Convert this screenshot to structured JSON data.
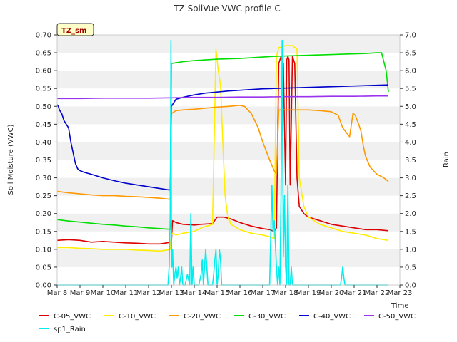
{
  "chart_data": {
    "type": "line",
    "title": "TZ SoilVue VWC profile C",
    "badge": "TZ_sm",
    "xlabel": "Time",
    "ylabel": "Soil Moisture (VWC)",
    "y2label": "Rain",
    "x_ticks": [
      "Mar 8",
      "Mar 9",
      "Mar 10",
      "Mar 11",
      "Mar 12",
      "Mar 13",
      "Mar 14",
      "Mar 15",
      "Mar 16",
      "Mar 17",
      "Mar 18",
      "Mar 19",
      "Mar 20",
      "Mar 21",
      "Mar 22",
      "Mar 23"
    ],
    "xlim": [
      0,
      15
    ],
    "ylim": [
      0.0,
      0.7
    ],
    "y2lim": [
      0.0,
      7.0
    ],
    "y_ticks": [
      "0.00",
      "0.05",
      "0.10",
      "0.15",
      "0.20",
      "0.25",
      "0.30",
      "0.35",
      "0.40",
      "0.45",
      "0.50",
      "0.55",
      "0.60",
      "0.65",
      "0.70"
    ],
    "y2_ticks": [
      "0.0",
      "0.5",
      "1.0",
      "1.5",
      "2.0",
      "2.5",
      "3.0",
      "3.5",
      "4.0",
      "4.5",
      "5.0",
      "5.5",
      "6.0",
      "6.5",
      "7.0"
    ],
    "grid": "horizontal-bands",
    "legend_placement": "bottom",
    "series": [
      {
        "name": "C-05_VWC",
        "color": "#dd0000",
        "axis": "left",
        "x": [
          0.0,
          0.5,
          1.0,
          1.5,
          2.0,
          2.5,
          3.0,
          3.5,
          4.0,
          4.5,
          5.0,
          5.05,
          5.2,
          5.5,
          6.0,
          6.3,
          6.8,
          7.0,
          7.3,
          7.6,
          8.0,
          8.5,
          9.0,
          9.3,
          9.5,
          9.6,
          9.7,
          9.8,
          9.9,
          10.0,
          10.05,
          10.1,
          10.15,
          10.2,
          10.3,
          10.4,
          10.5,
          10.6,
          10.8,
          11.0,
          11.5,
          12.0,
          12.5,
          13.0,
          13.5,
          14.0,
          14.5
        ],
        "y": [
          0.125,
          0.127,
          0.125,
          0.12,
          0.122,
          0.12,
          0.118,
          0.117,
          0.115,
          0.115,
          0.12,
          0.18,
          0.175,
          0.17,
          0.168,
          0.17,
          0.172,
          0.19,
          0.19,
          0.185,
          0.175,
          0.165,
          0.158,
          0.155,
          0.15,
          0.16,
          0.62,
          0.64,
          0.62,
          0.28,
          0.63,
          0.64,
          0.63,
          0.28,
          0.64,
          0.62,
          0.3,
          0.22,
          0.2,
          0.19,
          0.18,
          0.17,
          0.165,
          0.16,
          0.155,
          0.155,
          0.152
        ]
      },
      {
        "name": "C-10_VWC",
        "color": "#ffee00",
        "axis": "left",
        "x": [
          0.0,
          0.5,
          1.0,
          1.5,
          2.0,
          2.5,
          3.0,
          3.5,
          4.0,
          4.5,
          4.95,
          5.0,
          5.05,
          5.2,
          5.5,
          6.0,
          6.3,
          6.8,
          6.95,
          7.05,
          7.15,
          7.25,
          7.35,
          7.45,
          7.6,
          8.0,
          8.5,
          9.0,
          9.3,
          9.5,
          9.6,
          9.7,
          9.8,
          10.0,
          10.3,
          10.5,
          10.6,
          10.8,
          11.0,
          11.5,
          12.0,
          12.5,
          13.0,
          13.5,
          14.0,
          14.5
        ],
        "y": [
          0.105,
          0.105,
          0.103,
          0.102,
          0.1,
          0.1,
          0.1,
          0.098,
          0.097,
          0.095,
          0.1,
          0.14,
          0.145,
          0.14,
          0.145,
          0.15,
          0.16,
          0.17,
          0.66,
          0.6,
          0.56,
          0.4,
          0.25,
          0.2,
          0.17,
          0.155,
          0.145,
          0.14,
          0.135,
          0.13,
          0.64,
          0.665,
          0.665,
          0.67,
          0.67,
          0.66,
          0.3,
          0.22,
          0.19,
          0.17,
          0.16,
          0.15,
          0.145,
          0.14,
          0.13,
          0.125
        ]
      },
      {
        "name": "C-20_VWC",
        "color": "#ff9900",
        "axis": "left",
        "x": [
          0.0,
          0.5,
          1.0,
          1.5,
          2.0,
          2.5,
          3.0,
          3.5,
          4.0,
          4.5,
          4.95,
          5.0,
          5.2,
          5.5,
          6.0,
          6.5,
          7.0,
          7.5,
          8.0,
          8.2,
          8.5,
          8.8,
          9.0,
          9.3,
          9.5,
          9.6,
          9.7,
          10.0,
          10.5,
          11.0,
          11.5,
          12.0,
          12.3,
          12.5,
          12.8,
          12.95,
          13.05,
          13.2,
          13.3,
          13.4,
          13.5,
          13.7,
          14.0,
          14.3,
          14.5
        ],
        "y": [
          0.262,
          0.258,
          0.255,
          0.252,
          0.25,
          0.25,
          0.248,
          0.247,
          0.245,
          0.243,
          0.24,
          0.48,
          0.488,
          0.49,
          0.492,
          0.495,
          0.498,
          0.5,
          0.503,
          0.5,
          0.48,
          0.44,
          0.4,
          0.35,
          0.32,
          0.31,
          0.49,
          0.49,
          0.49,
          0.49,
          0.488,
          0.485,
          0.475,
          0.44,
          0.415,
          0.48,
          0.475,
          0.45,
          0.43,
          0.39,
          0.36,
          0.33,
          0.31,
          0.3,
          0.29
        ]
      },
      {
        "name": "C-30_VWC",
        "color": "#00dd00",
        "axis": "left",
        "x": [
          0.0,
          0.5,
          1.0,
          1.5,
          2.0,
          2.5,
          3.0,
          3.5,
          4.0,
          4.5,
          4.95,
          5.0,
          5.2,
          5.5,
          6.0,
          6.5,
          7.0,
          7.5,
          8.0,
          8.5,
          9.0,
          9.5,
          10.0,
          10.5,
          11.0,
          11.5,
          12.0,
          12.5,
          13.0,
          13.5,
          14.0,
          14.2,
          14.4,
          14.5
        ],
        "y": [
          0.183,
          0.179,
          0.176,
          0.173,
          0.17,
          0.168,
          0.165,
          0.163,
          0.16,
          0.158,
          0.156,
          0.62,
          0.622,
          0.625,
          0.628,
          0.63,
          0.632,
          0.633,
          0.634,
          0.636,
          0.638,
          0.64,
          0.641,
          0.642,
          0.643,
          0.644,
          0.645,
          0.646,
          0.647,
          0.648,
          0.65,
          0.65,
          0.6,
          0.54
        ]
      },
      {
        "name": "C-40_VWC",
        "color": "#0000cc",
        "axis": "left",
        "x": [
          0.0,
          0.05,
          0.1,
          0.2,
          0.3,
          0.4,
          0.5,
          0.6,
          0.7,
          0.8,
          0.9,
          1.0,
          1.2,
          1.5,
          2.0,
          2.5,
          3.0,
          3.5,
          4.0,
          4.5,
          4.9,
          4.95,
          5.0,
          5.2,
          5.5,
          6.0,
          6.5,
          7.0,
          7.5,
          8.0,
          8.5,
          9.0,
          9.5,
          10.0,
          10.5,
          11.0,
          11.5,
          12.0,
          12.5,
          13.0,
          13.5,
          14.0,
          14.5
        ],
        "y": [
          0.505,
          0.5,
          0.49,
          0.48,
          0.46,
          0.45,
          0.44,
          0.4,
          0.37,
          0.34,
          0.325,
          0.32,
          0.315,
          0.31,
          0.3,
          0.292,
          0.285,
          0.28,
          0.275,
          0.27,
          0.266,
          0.266,
          0.5,
          0.52,
          0.525,
          0.532,
          0.537,
          0.54,
          0.543,
          0.545,
          0.547,
          0.549,
          0.55,
          0.551,
          0.552,
          0.553,
          0.554,
          0.555,
          0.556,
          0.557,
          0.558,
          0.559,
          0.56
        ]
      },
      {
        "name": "C-50_VWC",
        "color": "#9933ee",
        "axis": "left",
        "x": [
          0.0,
          1.0,
          2.0,
          3.0,
          4.0,
          5.0,
          6.0,
          7.0,
          8.0,
          9.0,
          10.0,
          11.0,
          12.0,
          13.0,
          14.0,
          14.5
        ],
        "y": [
          0.522,
          0.522,
          0.523,
          0.523,
          0.523,
          0.524,
          0.525,
          0.525,
          0.526,
          0.526,
          0.527,
          0.527,
          0.528,
          0.528,
          0.529,
          0.529
        ]
      },
      {
        "name": "sp1_Rain",
        "color": "#00eeee",
        "axis": "right",
        "x": [
          0.0,
          4.85,
          4.9,
          4.95,
          4.98,
          5.0,
          5.02,
          5.05,
          5.1,
          5.15,
          5.2,
          5.25,
          5.3,
          5.35,
          5.4,
          5.45,
          5.5,
          5.6,
          5.7,
          5.8,
          5.85,
          5.9,
          5.95,
          6.0,
          6.1,
          6.2,
          6.3,
          6.35,
          6.4,
          6.45,
          6.5,
          6.6,
          6.7,
          6.8,
          6.85,
          6.9,
          6.95,
          7.0,
          7.05,
          7.1,
          7.15,
          7.2,
          7.3,
          8.0,
          9.0,
          9.3,
          9.4,
          9.45,
          9.5,
          9.55,
          9.6,
          9.65,
          9.7,
          9.75,
          9.8,
          9.85,
          9.9,
          9.95,
          10.0,
          10.05,
          10.1,
          10.15,
          10.2,
          10.25,
          10.3,
          10.35,
          10.4,
          10.5,
          11.0,
          12.0,
          12.4,
          12.45,
          12.5,
          12.55,
          12.6,
          12.65,
          13.0,
          14.5
        ],
        "y": [
          0.0,
          0.0,
          0.5,
          2.0,
          6.85,
          1.5,
          0.5,
          1.0,
          0.0,
          0.3,
          0.5,
          0.2,
          0.5,
          0.0,
          0.2,
          0.5,
          0.0,
          0.0,
          0.3,
          0.0,
          2.0,
          0.0,
          0.5,
          0.0,
          0.0,
          0.0,
          0.3,
          0.7,
          0.0,
          0.5,
          1.0,
          0.0,
          0.0,
          0.0,
          0.3,
          0.7,
          1.0,
          0.0,
          0.3,
          1.0,
          0.7,
          0.0,
          0.0,
          0.0,
          0.0,
          0.0,
          2.8,
          1.5,
          1.8,
          1.2,
          0.5,
          0.0,
          0.5,
          0.0,
          2.5,
          6.85,
          0.8,
          2.5,
          0.5,
          0.0,
          2.8,
          0.0,
          0.0,
          0.5,
          0.0,
          0.0,
          0.0,
          0.0,
          0.0,
          0.0,
          0.0,
          0.2,
          0.5,
          0.2,
          0.0,
          0.0,
          0.0,
          0.0
        ]
      }
    ]
  }
}
